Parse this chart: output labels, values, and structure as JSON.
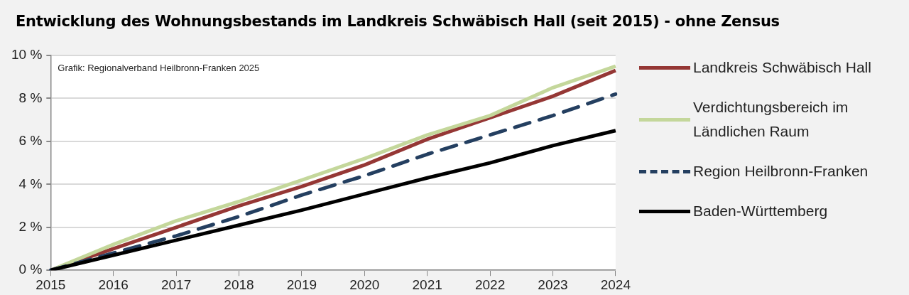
{
  "chart_data": {
    "type": "line",
    "title": "Entwicklung des Wohnungsbestands im Landkreis Schwäbisch Hall (seit 2015) - ohne Zensus",
    "annotations": [
      "Grafik: Regionalverband Heilbronn-Franken 2025"
    ],
    "categories": [
      "2015",
      "2016",
      "2017",
      "2018",
      "2019",
      "2020",
      "2021",
      "2022",
      "2023",
      "2024"
    ],
    "series": [
      {
        "name": "Landkreis Schwäbisch Hall",
        "color": "#953735",
        "values": [
          0,
          1.0,
          2.0,
          3.0,
          3.9,
          4.9,
          6.1,
          7.1,
          8.1,
          9.3
        ]
      },
      {
        "name": "Verdichtungsbereich im Ländlichen Raum",
        "color": "#c4d79b",
        "values": [
          0,
          1.2,
          2.3,
          3.2,
          4.2,
          5.2,
          6.3,
          7.2,
          8.5,
          9.5
        ]
      },
      {
        "name": "Region Heilbronn-Franken",
        "color": "#243f60",
        "line_style": "dashed",
        "values": [
          0,
          0.8,
          1.6,
          2.5,
          3.5,
          4.4,
          5.4,
          6.3,
          7.2,
          8.2
        ]
      },
      {
        "name": "Baden-Württemberg",
        "color": "#000000",
        "values": [
          0,
          0.7,
          1.4,
          2.1,
          2.8,
          3.55,
          4.3,
          5.0,
          5.8,
          6.5
        ]
      }
    ],
    "ylim": [
      0,
      10
    ],
    "yticks": [
      {
        "value": 0,
        "label": "0 %"
      },
      {
        "value": 2,
        "label": "2 %"
      },
      {
        "value": 4,
        "label": "4 %"
      },
      {
        "value": 6,
        "label": "6 %"
      },
      {
        "value": 8,
        "label": "8 %"
      },
      {
        "value": 10,
        "label": "10 %"
      }
    ],
    "grid": "y",
    "legend": "right",
    "marker": "none",
    "line_style": "solid"
  }
}
